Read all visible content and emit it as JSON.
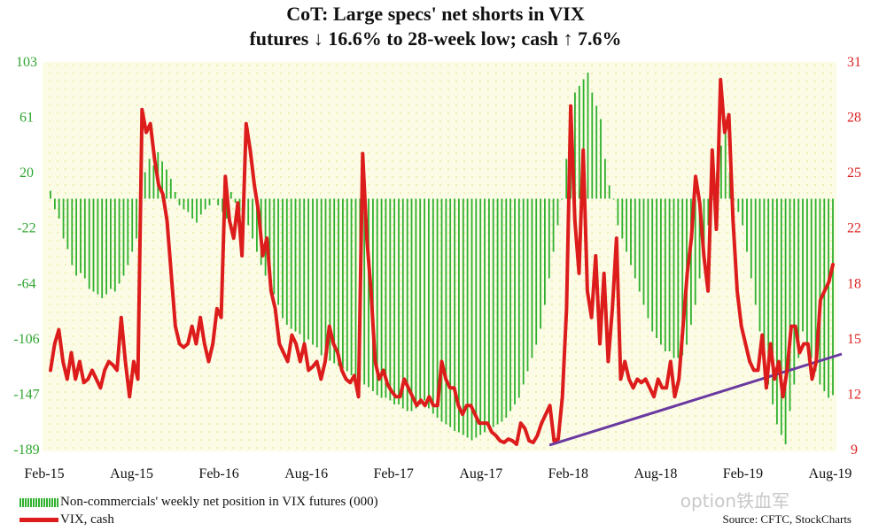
{
  "title_line1": "CoT: Large specs' net shorts in VIX",
  "title_line2": "futures ↓ 16.6% to 28-week low; cash ↑ 7.6%",
  "legend_bar": "Non-commercials' weekly net position in VIX futures (000)",
  "legend_line": "VIX, cash",
  "source": "Source: CFTC, StockCharts",
  "watermark": "option铁血军",
  "colors": {
    "bars": "#2fb02f",
    "line": "#dd1c1c",
    "trend": "#6a3aa0",
    "left_axis": "#2fa52f",
    "right_axis": "#dd2222",
    "bg": "#fcfce6"
  },
  "chart_data": {
    "type": "bar",
    "x_tick_labels": [
      "Feb-15",
      "Aug-15",
      "Feb-16",
      "Aug-16",
      "Feb-17",
      "Aug-17",
      "Feb-18",
      "Aug-18",
      "Feb-19",
      "Aug-19"
    ],
    "y_left_ticks": [
      "103",
      "61",
      "20",
      "-22",
      "-64",
      "-106",
      "-147",
      "-189"
    ],
    "y_right_ticks": [
      "31",
      "28",
      "25",
      "22",
      "18",
      "15",
      "12",
      "9"
    ],
    "y_left_range": [
      -189,
      103
    ],
    "y_right_range": [
      9,
      31
    ],
    "bar_zero_line": 0,
    "series": [
      {
        "name": "Non-commercials' weekly net position in VIX futures (000)",
        "axis": "left",
        "values": [
          6,
          -8,
          -15,
          -30,
          -38,
          -50,
          -58,
          -56,
          -60,
          -68,
          -70,
          -72,
          -75,
          -72,
          -68,
          -70,
          -64,
          -58,
          -50,
          -40,
          -30,
          -8,
          20,
          30,
          25,
          35,
          28,
          22,
          15,
          5,
          -5,
          -8,
          -10,
          -15,
          -18,
          -12,
          -8,
          -5,
          0,
          -5,
          -10,
          -15,
          5,
          -3,
          -10,
          -15,
          -20,
          -30,
          -40,
          -50,
          -58,
          -65,
          -72,
          -80,
          -90,
          -95,
          -98,
          -100,
          -102,
          -108,
          -106,
          -110,
          -112,
          -118,
          -120,
          -122,
          -124,
          -126,
          -128,
          -130,
          -133,
          -135,
          -138,
          -140,
          -142,
          -145,
          -148,
          -150,
          -150,
          -152,
          -155,
          -155,
          -158,
          -160,
          -160,
          -158,
          -155,
          -152,
          -158,
          -162,
          -165,
          -168,
          -170,
          -172,
          -175,
          -176,
          -178,
          -180,
          -182,
          -180,
          -178,
          -176,
          -174,
          -172,
          -170,
          -168,
          -165,
          -160,
          -155,
          -150,
          -140,
          -130,
          -120,
          -110,
          -98,
          -80,
          -60,
          -40,
          -20,
          0,
          30,
          60,
          80,
          85,
          90,
          95,
          80,
          70,
          60,
          30,
          10,
          0,
          -20,
          -30,
          -40,
          -50,
          -60,
          -70,
          -80,
          -90,
          -100,
          -105,
          -110,
          -115,
          -115,
          -120,
          -120,
          -118,
          -110,
          -95,
          -80,
          -60,
          -40,
          -20,
          0,
          20,
          40,
          50,
          20,
          0,
          -10,
          -20,
          -40,
          -60,
          -80,
          -100,
          -120,
          -140,
          -155,
          -170,
          -178,
          -185,
          -160,
          -140,
          -120,
          -100,
          -110,
          -120,
          -130,
          -140,
          -145,
          -150,
          -148
        ]
      },
      {
        "name": "VIX, cash",
        "axis": "right",
        "values": [
          13.5,
          15,
          15.8,
          14,
          13,
          14.5,
          13,
          14,
          12.8,
          13,
          13.5,
          13,
          12.5,
          13.5,
          14,
          13.8,
          13.5,
          16.5,
          14,
          12,
          14,
          13,
          28.3,
          27,
          27.5,
          25.5,
          24,
          23.5,
          22,
          19,
          16,
          15,
          14.8,
          15,
          16,
          15,
          16.5,
          15,
          14,
          15,
          17,
          16.5,
          24.5,
          22,
          21,
          23,
          20,
          27.5,
          26,
          24,
          22.5,
          20,
          21,
          18,
          17,
          15,
          14.5,
          14,
          15.5,
          15,
          14,
          15,
          13.5,
          13.7,
          14,
          13,
          14,
          16,
          15,
          14.5,
          13.5,
          13,
          12.8,
          13.2,
          12,
          25.8,
          21,
          18,
          14,
          13,
          13.5,
          12.7,
          12.3,
          12,
          12,
          13,
          12.5,
          12,
          11.5,
          11.8,
          11.5,
          12,
          11.5,
          11.5,
          14,
          13,
          12.5,
          12.5,
          11.5,
          11,
          11.5,
          11.5,
          11,
          10.5,
          10.5,
          10.5,
          10,
          9.8,
          9.5,
          9.4,
          9.6,
          9.5,
          9.3,
          10.5,
          10.2,
          9.5,
          9.4,
          9.8,
          10.5,
          11,
          11.5,
          9.5,
          9.6,
          12,
          17,
          28.5,
          22,
          19,
          26,
          18,
          16.5,
          20,
          15,
          19,
          14,
          17,
          21,
          13,
          14,
          13,
          12.5,
          13,
          12.8,
          13,
          12.5,
          12,
          13,
          12.5,
          12.5,
          14,
          12,
          13,
          16,
          19,
          21,
          24.5,
          23,
          20,
          18,
          26,
          21.5,
          30,
          27,
          28,
          22,
          18,
          16,
          15,
          14,
          13.5,
          13.5,
          15.5,
          12.5,
          15,
          13,
          14,
          12,
          13.5,
          16,
          16,
          14.5,
          15,
          15,
          13,
          14,
          17.5,
          18,
          18.5,
          19.5
        ]
      }
    ],
    "annotations": [
      "purple upward trendline across VIX lows from Feb-18 to Aug-19"
    ]
  }
}
